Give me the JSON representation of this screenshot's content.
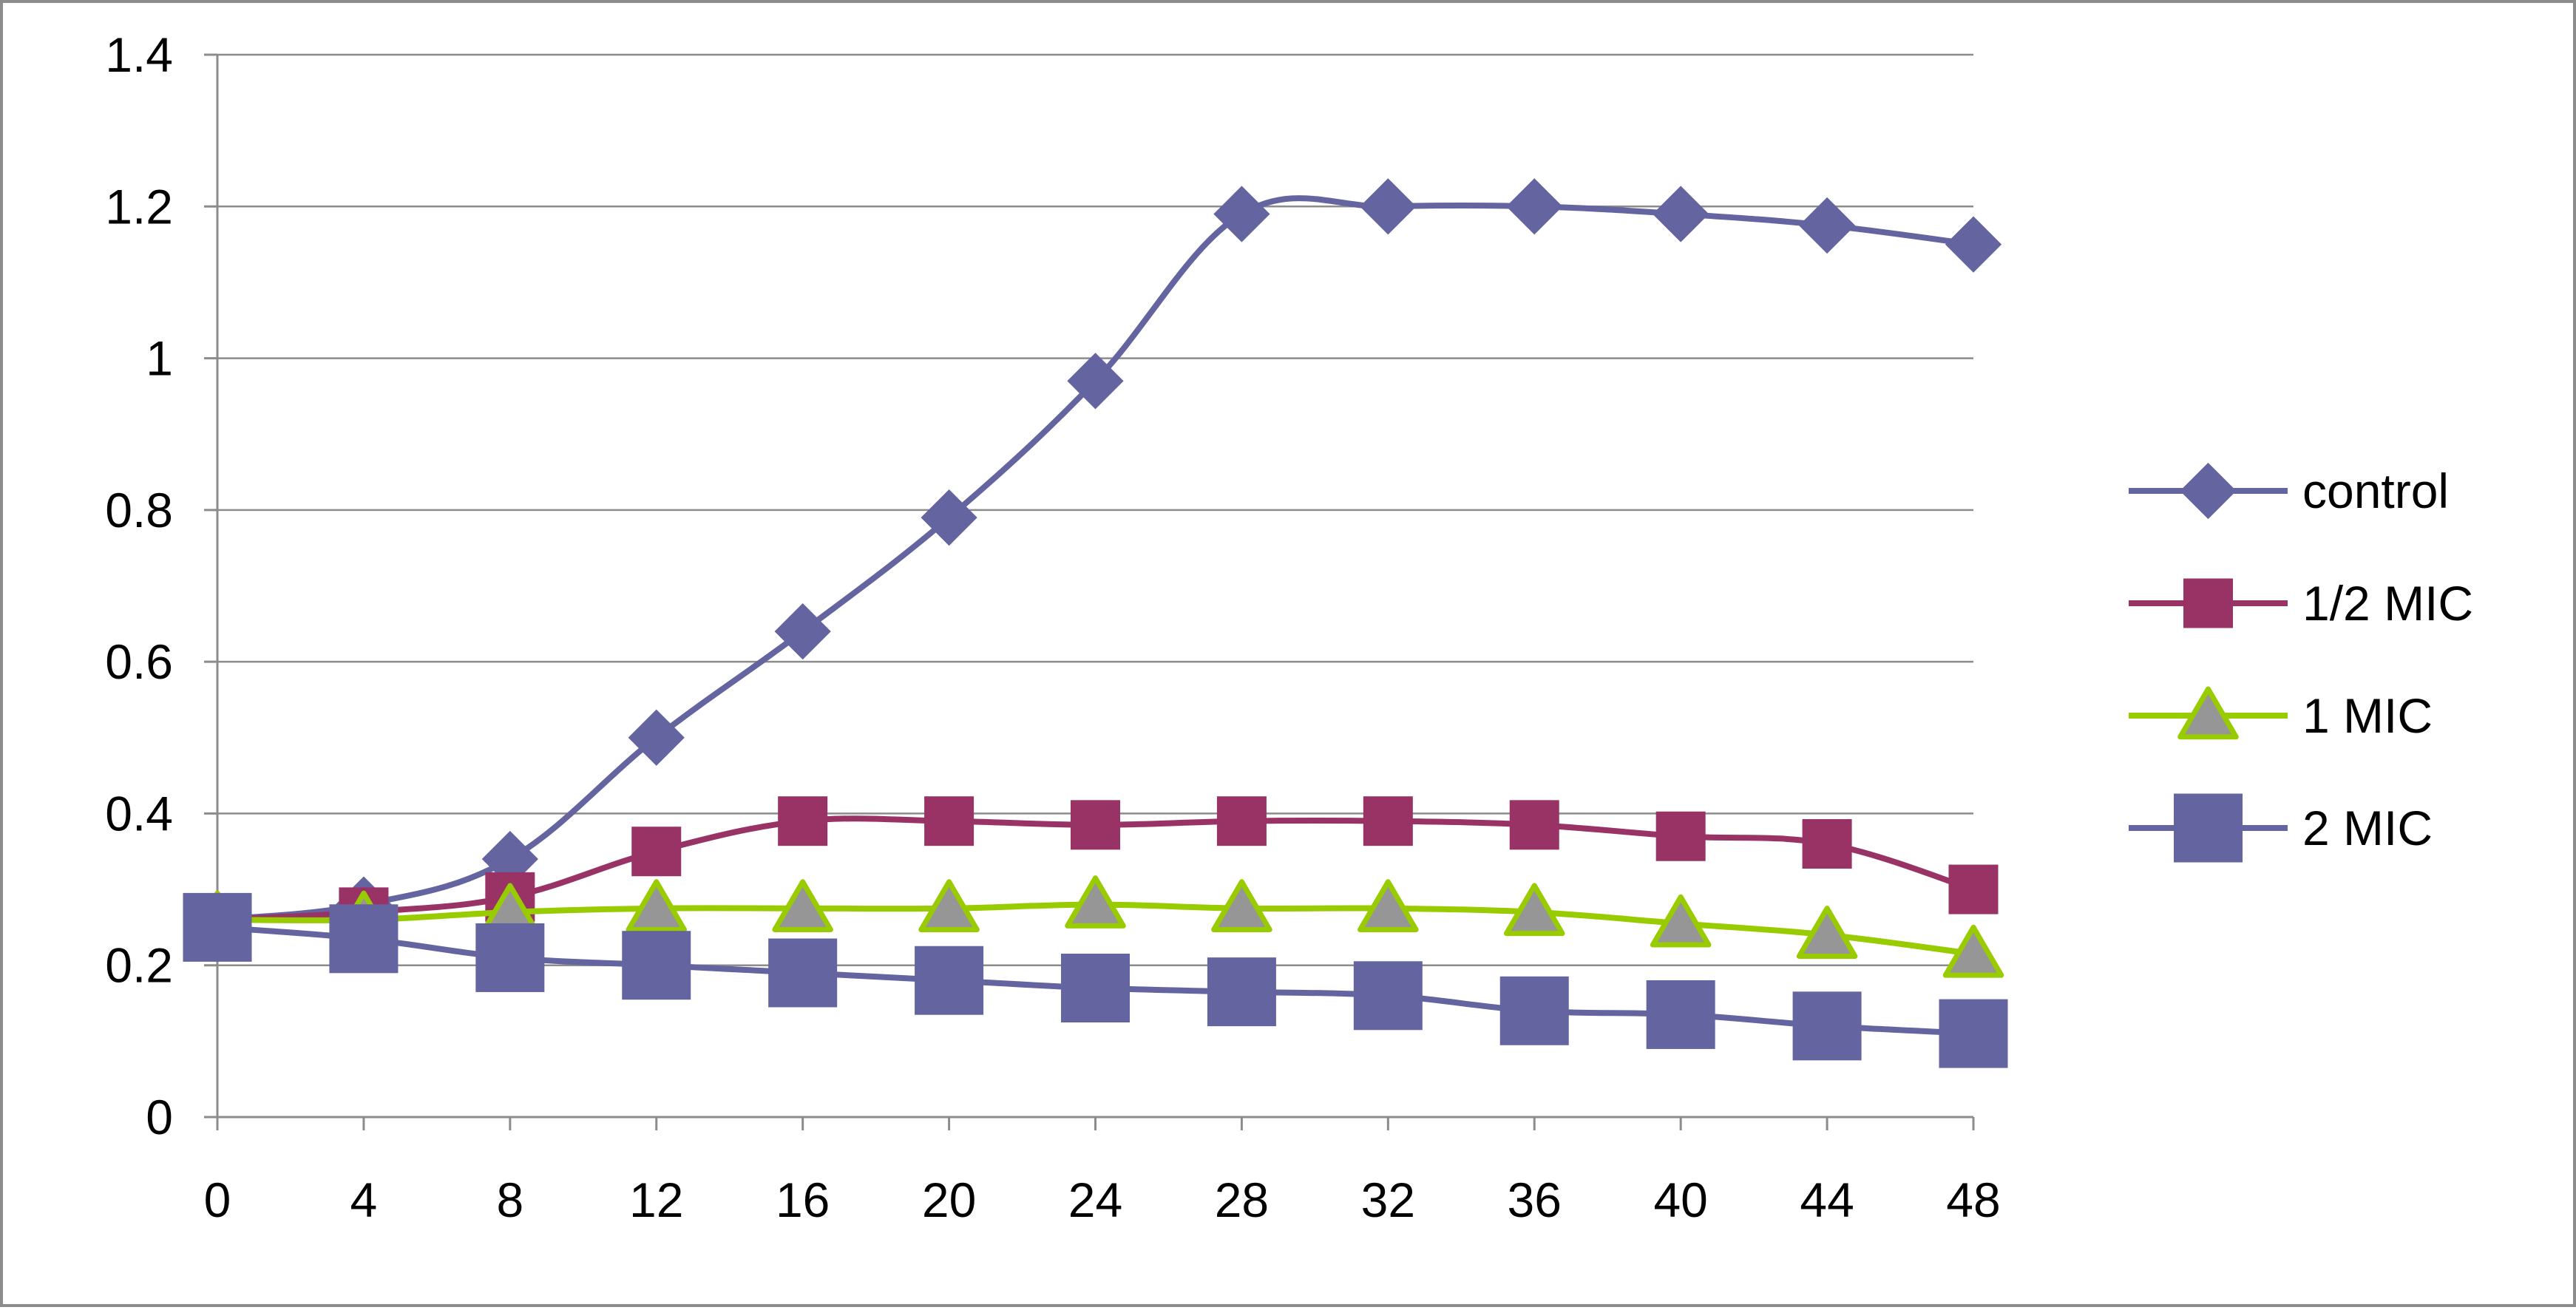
{
  "chart_data": {
    "type": "line",
    "title": "",
    "xlabel": "",
    "ylabel": "",
    "x": [
      0,
      4,
      8,
      12,
      16,
      20,
      24,
      28,
      32,
      36,
      40,
      44,
      48
    ],
    "xlim": [
      0,
      48
    ],
    "ylim": [
      0,
      1.4
    ],
    "x_ticks": [
      "0",
      "4",
      "8",
      "12",
      "16",
      "20",
      "24",
      "28",
      "32",
      "36",
      "40",
      "44",
      "48"
    ],
    "y_ticks": [
      "0",
      "0.2",
      "0.4",
      "0.6",
      "0.8",
      "1",
      "1.2",
      "1.4"
    ],
    "grid": "horizontal",
    "legend_position": "right",
    "series": [
      {
        "name": "control",
        "marker": "diamond",
        "color": "#6464A0",
        "marker_fill": "#6464A0",
        "marker_stroke": "#6464A0",
        "values": [
          0.26,
          0.28,
          0.34,
          0.5,
          0.64,
          0.79,
          0.97,
          1.19,
          1.2,
          1.2,
          1.19,
          1.175,
          1.15
        ]
      },
      {
        "name": "1/2 MIC",
        "marker": "square",
        "color": "#993366",
        "marker_fill": "#993366",
        "marker_stroke": "#993366",
        "values": [
          0.26,
          0.27,
          0.29,
          0.35,
          0.39,
          0.39,
          0.385,
          0.39,
          0.39,
          0.385,
          0.37,
          0.36,
          0.3
        ]
      },
      {
        "name": "1 MIC",
        "marker": "triangle",
        "color": "#99CC00",
        "marker_fill": "#969696",
        "marker_stroke": "#99CC00",
        "values": [
          0.26,
          0.26,
          0.27,
          0.275,
          0.275,
          0.275,
          0.28,
          0.275,
          0.275,
          0.27,
          0.255,
          0.24,
          0.215
        ]
      },
      {
        "name": "2 MIC",
        "marker": "square-large",
        "color": "#6464A0",
        "marker_fill": "#6464A0",
        "marker_stroke": "#6464A0",
        "values": [
          0.25,
          0.235,
          0.21,
          0.2,
          0.19,
          0.18,
          0.17,
          0.165,
          0.16,
          0.14,
          0.135,
          0.12,
          0.11
        ]
      }
    ]
  }
}
